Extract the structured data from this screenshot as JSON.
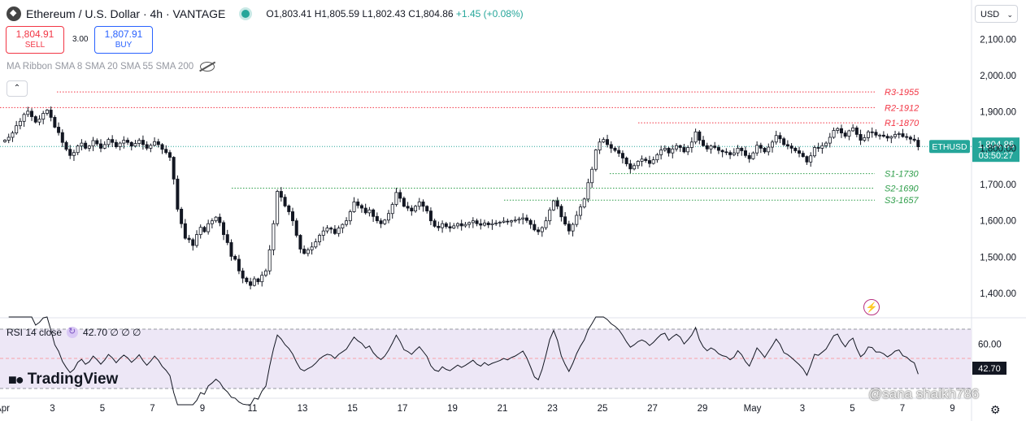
{
  "header": {
    "title": "Ethereum / U.S. Dollar · 4h · VANTAGE",
    "ohlc": {
      "open": "O1,803.41",
      "high": "H1,805.59",
      "low": "L1,802.43",
      "close": "C1,804.86",
      "change": "+1.45 (+0.08%)"
    }
  },
  "trade": {
    "sell_price": "1,804.91",
    "sell_label": "SELL",
    "spread": "3.00",
    "buy_price": "1,807.91",
    "buy_label": "BUY"
  },
  "indicator_label": "MA Ribbon SMA 8 SMA 20 SMA 55 SMA 200",
  "currency": "USD",
  "rsi": {
    "label": "RSI 14 close",
    "values": "42.70 ∅ ∅ ∅",
    "axis_label": "60.00",
    "current": "42.70"
  },
  "logo_text": "TradingView",
  "watermark": "@sana shaikh786",
  "colors": {
    "up": "#26a69a",
    "down": "#f23645",
    "candle": "#131722",
    "resistance": "#f23645",
    "support": "#2e9e4a",
    "rsi_line": "#131722",
    "rsi_band": "#ede7f6"
  },
  "chart_data": {
    "type": "candlestick",
    "symbol": "ETHUSD",
    "interval": "4h",
    "y_axis": {
      "ticks": [
        2100,
        2000,
        1900,
        1800,
        1700,
        1600,
        1500,
        1400
      ],
      "tick_labels": [
        "2,100.00",
        "2,000.00",
        "1,900.00",
        "1,800.00",
        "1,700.00",
        "1,600.00",
        "1,500.00",
        "1,400.00"
      ],
      "range": [
        1335,
        2130
      ]
    },
    "x_axis": {
      "tick_labels": [
        "Apr",
        "3",
        "5",
        "7",
        "9",
        "11",
        "13",
        "15",
        "17",
        "19",
        "21",
        "23",
        "25",
        "27",
        "29",
        "May",
        "3",
        "5",
        "7",
        "9"
      ]
    },
    "current_price": {
      "symbol": "ETHUSD",
      "price": "1,804.86",
      "countdown": "03:50:27",
      "value": 1804.86
    },
    "levels": [
      {
        "label": "R3-1955",
        "value": 1955,
        "kind": "resistance"
      },
      {
        "label": "R2-1912",
        "value": 1912,
        "kind": "resistance"
      },
      {
        "label": "R1-1870",
        "value": 1870,
        "kind": "resistance"
      },
      {
        "label": "S1-1730",
        "value": 1730,
        "kind": "support"
      },
      {
        "label": "S2-1690",
        "value": 1690,
        "kind": "support"
      },
      {
        "label": "S3-1657",
        "value": 1657,
        "kind": "support"
      }
    ],
    "closes": [
      1822,
      1830,
      1842,
      1862,
      1874,
      1893,
      1902,
      1887,
      1872,
      1880,
      1896,
      1905,
      1885,
      1858,
      1843,
      1816,
      1797,
      1780,
      1788,
      1806,
      1814,
      1800,
      1806,
      1821,
      1812,
      1800,
      1810,
      1824,
      1816,
      1804,
      1814,
      1822,
      1816,
      1806,
      1813,
      1822,
      1810,
      1800,
      1808,
      1818,
      1810,
      1797,
      1788,
      1775,
      1715,
      1632,
      1592,
      1552,
      1548,
      1532,
      1562,
      1582,
      1570,
      1592,
      1600,
      1610,
      1595,
      1562,
      1540,
      1502,
      1494,
      1462,
      1442,
      1432,
      1422,
      1440,
      1432,
      1450,
      1462,
      1520,
      1592,
      1681,
      1665,
      1641,
      1625,
      1600,
      1560,
      1522,
      1510,
      1520,
      1528,
      1542,
      1560,
      1572,
      1580,
      1577,
      1565,
      1580,
      1590,
      1600,
      1625,
      1652,
      1642,
      1635,
      1622,
      1630,
      1612,
      1600,
      1592,
      1602,
      1620,
      1645,
      1678,
      1662,
      1640,
      1635,
      1627,
      1640,
      1652,
      1640,
      1627,
      1600,
      1585,
      1581,
      1592,
      1584,
      1580,
      1586,
      1592,
      1586,
      1590,
      1595,
      1600,
      1592,
      1588,
      1594,
      1589,
      1592,
      1594,
      1596,
      1599,
      1597,
      1600,
      1602,
      1605,
      1608,
      1601,
      1590,
      1575,
      1570,
      1581,
      1600,
      1630,
      1655,
      1640,
      1611,
      1591,
      1572,
      1590,
      1615,
      1638,
      1660,
      1705,
      1742,
      1795,
      1817,
      1824,
      1810,
      1800,
      1794,
      1786,
      1773,
      1757,
      1743,
      1752,
      1764,
      1770,
      1766,
      1758,
      1768,
      1782,
      1795,
      1800,
      1787,
      1798,
      1807,
      1802,
      1790,
      1802,
      1817,
      1845,
      1822,
      1807,
      1798,
      1806,
      1802,
      1794,
      1790,
      1788,
      1782,
      1787,
      1800,
      1793,
      1780,
      1771,
      1787,
      1808,
      1800,
      1790,
      1803,
      1817,
      1835,
      1826,
      1810,
      1806,
      1800,
      1793,
      1786,
      1777,
      1762,
      1779,
      1802,
      1800,
      1807,
      1814,
      1830,
      1849,
      1854,
      1842,
      1833,
      1848,
      1856,
      1838,
      1822,
      1829,
      1845,
      1844,
      1836,
      1836,
      1833,
      1828,
      1832,
      1838,
      1840,
      1832,
      1830,
      1825,
      1822,
      1804
    ]
  }
}
